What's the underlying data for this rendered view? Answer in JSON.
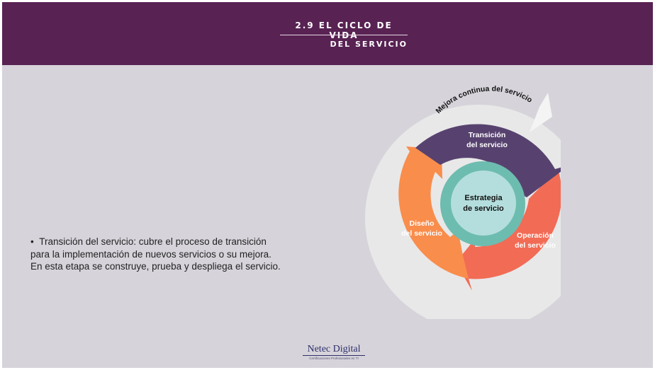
{
  "header": {
    "title_line1": "2.9 EL CICLO DE VIDA",
    "title_line2": "DEL SERVICIO"
  },
  "body_text": {
    "bullet_marker": "•",
    "line1": "Transición del servicio: cubre el proceso de transición",
    "line2": "para la implementación de nuevos servicios o su mejora.",
    "line3": "En esta etapa se construye, prueba y despliega el servicio."
  },
  "diagram": {
    "outer_ring_label": "Mejora continua del servicio",
    "stages": {
      "transicion": {
        "line1": "Transición",
        "line2": "del servicio"
      },
      "operacion": {
        "line1": "Operación",
        "line2": "del servicio"
      },
      "diseno": {
        "line1": "Diseño",
        "line2": "del servicio"
      }
    },
    "center": {
      "line1": "Estrategia",
      "line2": "de servicio"
    },
    "colors": {
      "outer_ring": "#e8e8e8",
      "transicion": "#57426f",
      "operacion": "#f26b55",
      "diseno": "#f98d4c",
      "center_ring": "#6dbcb0",
      "center_disc": "#b4dedd"
    }
  },
  "footer": {
    "logo_name": "Netec Digital",
    "logo_tagline": "Certificaciones Profesionales en TI"
  }
}
